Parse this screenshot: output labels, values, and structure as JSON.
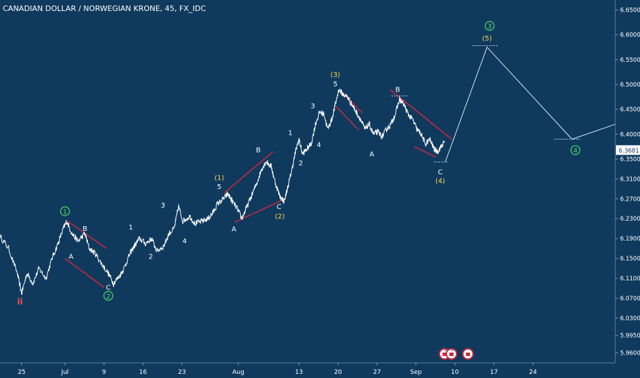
{
  "title": "CANADIAN DOLLAR / NORWEGIAN KRONE, 45, FX_IDC",
  "colors": {
    "background": "#0f3a5e",
    "price": "#ffffff",
    "trendline": "#c8283c",
    "wave_green": "#4cd964",
    "wave_yellow": "#ffd84a",
    "wave_white": "#ffffff",
    "wave_red": "#ff4d4d",
    "axis_text": "#ffffff",
    "price_tag_bg": "#ffffff",
    "price_tag_text": "#0f3a5e"
  },
  "chart_data": {
    "type": "line",
    "ylim": [
      5.94,
      6.67
    ],
    "xlim": [
      -1.5,
      69.5
    ],
    "y_ticks": [
      {
        "value": 6.65,
        "label": "6.6500"
      },
      {
        "value": 6.6,
        "label": "6.6000"
      },
      {
        "value": 6.55,
        "label": "6.5500"
      },
      {
        "value": 6.5,
        "label": "6.5000"
      },
      {
        "value": 6.45,
        "label": "6.4500"
      },
      {
        "value": 6.4,
        "label": "6.4000"
      },
      {
        "value": 6.35,
        "label": "6.3500"
      },
      {
        "value": 6.31,
        "label": "6.3100"
      },
      {
        "value": 6.27,
        "label": "6.2700"
      },
      {
        "value": 6.23,
        "label": "6.2300"
      },
      {
        "value": 6.19,
        "label": "6.1900"
      },
      {
        "value": 6.15,
        "label": "6.1500"
      },
      {
        "value": 6.11,
        "label": "6.1100"
      },
      {
        "value": 6.07,
        "label": "6.0700"
      },
      {
        "value": 6.03,
        "label": "6.0300"
      },
      {
        "value": 5.995,
        "label": "5.9950"
      },
      {
        "value": 5.96,
        "label": "5.9600"
      }
    ],
    "x_ticks": [
      {
        "x": 1,
        "label": "25"
      },
      {
        "x": 6,
        "label": "Jul"
      },
      {
        "x": 10.5,
        "label": "9"
      },
      {
        "x": 15,
        "label": "16"
      },
      {
        "x": 19.5,
        "label": "23"
      },
      {
        "x": 26,
        "label": "Aug"
      },
      {
        "x": 33,
        "label": "13"
      },
      {
        "x": 37.5,
        "label": "20"
      },
      {
        "x": 42,
        "label": "27"
      },
      {
        "x": 46.5,
        "label": "Sep"
      },
      {
        "x": 51,
        "label": "10"
      },
      {
        "x": 55.5,
        "label": "17"
      },
      {
        "x": 60,
        "label": "24"
      }
    ],
    "current_price": {
      "value": 6.3681,
      "label": "6.3681"
    },
    "price_series": [
      [
        -1.5,
        6.195
      ],
      [
        -0.5,
        6.17
      ],
      [
        0.5,
        6.12
      ],
      [
        1.0,
        6.08
      ],
      [
        1.6,
        6.12
      ],
      [
        2.3,
        6.1
      ],
      [
        3.0,
        6.13
      ],
      [
        3.8,
        6.11
      ],
      [
        4.5,
        6.15
      ],
      [
        5.2,
        6.18
      ],
      [
        5.8,
        6.21
      ],
      [
        6.2,
        6.225
      ],
      [
        6.8,
        6.2
      ],
      [
        7.5,
        6.185
      ],
      [
        8.3,
        6.2
      ],
      [
        8.8,
        6.17
      ],
      [
        9.5,
        6.16
      ],
      [
        10.2,
        6.14
      ],
      [
        11.0,
        6.12
      ],
      [
        11.6,
        6.1
      ],
      [
        12.3,
        6.115
      ],
      [
        12.8,
        6.13
      ],
      [
        13.5,
        6.16
      ],
      [
        14.0,
        6.175
      ],
      [
        14.6,
        6.19
      ],
      [
        15.3,
        6.18
      ],
      [
        16.0,
        6.19
      ],
      [
        16.6,
        6.165
      ],
      [
        17.4,
        6.175
      ],
      [
        18.0,
        6.2
      ],
      [
        18.6,
        6.21
      ],
      [
        19.1,
        6.255
      ],
      [
        19.6,
        6.225
      ],
      [
        20.4,
        6.235
      ],
      [
        21.0,
        6.22
      ],
      [
        21.8,
        6.225
      ],
      [
        22.5,
        6.23
      ],
      [
        23.0,
        6.24
      ],
      [
        23.6,
        6.26
      ],
      [
        24.3,
        6.27
      ],
      [
        24.8,
        6.28
      ],
      [
        25.3,
        6.265
      ],
      [
        25.9,
        6.25
      ],
      [
        26.4,
        6.23
      ],
      [
        26.9,
        6.25
      ],
      [
        27.5,
        6.275
      ],
      [
        28.1,
        6.3
      ],
      [
        28.7,
        6.33
      ],
      [
        29.2,
        6.345
      ],
      [
        29.8,
        6.335
      ],
      [
        30.3,
        6.3
      ],
      [
        30.8,
        6.275
      ],
      [
        31.3,
        6.265
      ],
      [
        31.8,
        6.3
      ],
      [
        32.2,
        6.33
      ],
      [
        32.6,
        6.365
      ],
      [
        33.0,
        6.39
      ],
      [
        33.4,
        6.36
      ],
      [
        33.9,
        6.37
      ],
      [
        34.4,
        6.38
      ],
      [
        34.9,
        6.42
      ],
      [
        35.4,
        6.445
      ],
      [
        35.9,
        6.44
      ],
      [
        36.3,
        6.41
      ],
      [
        36.8,
        6.43
      ],
      [
        37.2,
        6.46
      ],
      [
        37.6,
        6.49
      ],
      [
        38.1,
        6.48
      ],
      [
        38.6,
        6.475
      ],
      [
        39.1,
        6.46
      ],
      [
        39.6,
        6.445
      ],
      [
        40.1,
        6.43
      ],
      [
        40.6,
        6.41
      ],
      [
        41.1,
        6.42
      ],
      [
        41.6,
        6.4
      ],
      [
        42.1,
        6.405
      ],
      [
        42.6,
        6.395
      ],
      [
        43.1,
        6.41
      ],
      [
        43.6,
        6.42
      ],
      [
        44.1,
        6.44
      ],
      [
        44.6,
        6.47
      ],
      [
        45.1,
        6.46
      ],
      [
        45.6,
        6.44
      ],
      [
        46.1,
        6.43
      ],
      [
        46.6,
        6.41
      ],
      [
        47.1,
        6.4
      ],
      [
        47.6,
        6.38
      ],
      [
        48.1,
        6.39
      ],
      [
        48.6,
        6.37
      ],
      [
        49.0,
        6.365
      ],
      [
        49.4,
        6.375
      ],
      [
        49.8,
        6.385
      ]
    ],
    "projection": [
      [
        49.9,
        6.345
      ],
      [
        54.7,
        6.575
      ],
      [
        64.5,
        6.39
      ],
      [
        69.5,
        6.42
      ]
    ],
    "dotted_levels": [
      {
        "x1": 53.0,
        "x2": 56.0,
        "y": 6.578
      },
      {
        "x1": 62.5,
        "x2": 65.5,
        "y": 6.39
      },
      {
        "x1": 48.6,
        "x2": 50.2,
        "y": 6.344
      },
      {
        "x1": 43.7,
        "x2": 45.6,
        "y": 6.477
      }
    ],
    "trendlines": [
      [
        [
          6.3,
          6.225
        ],
        [
          10.8,
          6.17
        ]
      ],
      [
        [
          6.0,
          6.15
        ],
        [
          10.5,
          6.092
        ]
      ],
      [
        [
          24.4,
          6.282
        ],
        [
          30.0,
          6.365
        ]
      ],
      [
        [
          25.6,
          6.223
        ],
        [
          31.4,
          6.27
        ]
      ],
      [
        [
          37.9,
          6.485
        ],
        [
          40.3,
          6.443
        ]
      ],
      [
        [
          37.3,
          6.456
        ],
        [
          39.9,
          6.408
        ]
      ],
      [
        [
          43.5,
          6.49
        ],
        [
          50.6,
          6.39
        ]
      ],
      [
        [
          46.3,
          6.375
        ],
        [
          48.8,
          6.354
        ]
      ]
    ],
    "wave_labels": [
      {
        "text": "ii",
        "x": 0.8,
        "y": 6.063,
        "color": "red",
        "circle": false
      },
      {
        "text": "1",
        "x": 6.0,
        "y": 6.245,
        "color": "green",
        "circle": true
      },
      {
        "text": "2",
        "x": 11.0,
        "y": 6.075,
        "color": "green",
        "circle": true
      },
      {
        "text": "3",
        "x": 55.0,
        "y": 6.618,
        "color": "green",
        "circle": true
      },
      {
        "text": "4",
        "x": 64.9,
        "y": 6.368,
        "color": "green",
        "circle": true
      },
      {
        "text": "A",
        "x": 6.7,
        "y": 6.155,
        "color": "white",
        "circle": false
      },
      {
        "text": "B",
        "x": 8.3,
        "y": 6.211,
        "color": "white",
        "circle": false
      },
      {
        "text": "C",
        "x": 11.0,
        "y": 6.093,
        "color": "white",
        "circle": false
      },
      {
        "text": "1",
        "x": 13.6,
        "y": 6.214,
        "color": "white",
        "circle": false
      },
      {
        "text": "2",
        "x": 15.9,
        "y": 6.155,
        "color": "white",
        "circle": false
      },
      {
        "text": "3",
        "x": 17.3,
        "y": 6.258,
        "color": "white",
        "circle": false
      },
      {
        "text": "4",
        "x": 19.8,
        "y": 6.186,
        "color": "white",
        "circle": false
      },
      {
        "text": "(1)",
        "x": 23.8,
        "y": 6.313,
        "color": "yellow",
        "circle": false
      },
      {
        "text": "5",
        "x": 23.8,
        "y": 6.295,
        "color": "white",
        "circle": false
      },
      {
        "text": "A",
        "x": 25.5,
        "y": 6.21,
        "color": "white",
        "circle": false
      },
      {
        "text": "B",
        "x": 28.3,
        "y": 6.369,
        "color": "white",
        "circle": false
      },
      {
        "text": "C",
        "x": 30.7,
        "y": 6.255,
        "color": "white",
        "circle": false
      },
      {
        "text": "(2)",
        "x": 30.8,
        "y": 6.236,
        "color": "yellow",
        "circle": false
      },
      {
        "text": "1",
        "x": 32.0,
        "y": 6.404,
        "color": "white",
        "circle": false
      },
      {
        "text": "2",
        "x": 33.2,
        "y": 6.343,
        "color": "white",
        "circle": false
      },
      {
        "text": "3",
        "x": 34.6,
        "y": 6.458,
        "color": "white",
        "circle": false
      },
      {
        "text": "4",
        "x": 35.3,
        "y": 6.38,
        "color": "white",
        "circle": false
      },
      {
        "text": "(3)",
        "x": 37.2,
        "y": 6.521,
        "color": "yellow",
        "circle": false
      },
      {
        "text": "5",
        "x": 37.2,
        "y": 6.502,
        "color": "white",
        "circle": false
      },
      {
        "text": "A",
        "x": 41.4,
        "y": 6.361,
        "color": "white",
        "circle": false
      },
      {
        "text": "B",
        "x": 44.4,
        "y": 6.491,
        "color": "white",
        "circle": false
      },
      {
        "text": "C",
        "x": 49.3,
        "y": 6.325,
        "color": "white",
        "circle": false
      },
      {
        "text": "(4)",
        "x": 49.3,
        "y": 6.307,
        "color": "yellow",
        "circle": false
      },
      {
        "text": "(5)",
        "x": 54.7,
        "y": 6.594,
        "color": "yellow",
        "circle": false
      }
    ],
    "event_markers": [
      {
        "x": 49.8,
        "text": "3"
      },
      {
        "x": 50.6,
        "text": "5"
      },
      {
        "x": 52.5,
        "text": ""
      }
    ],
    "grid": false,
    "legend": "none"
  }
}
